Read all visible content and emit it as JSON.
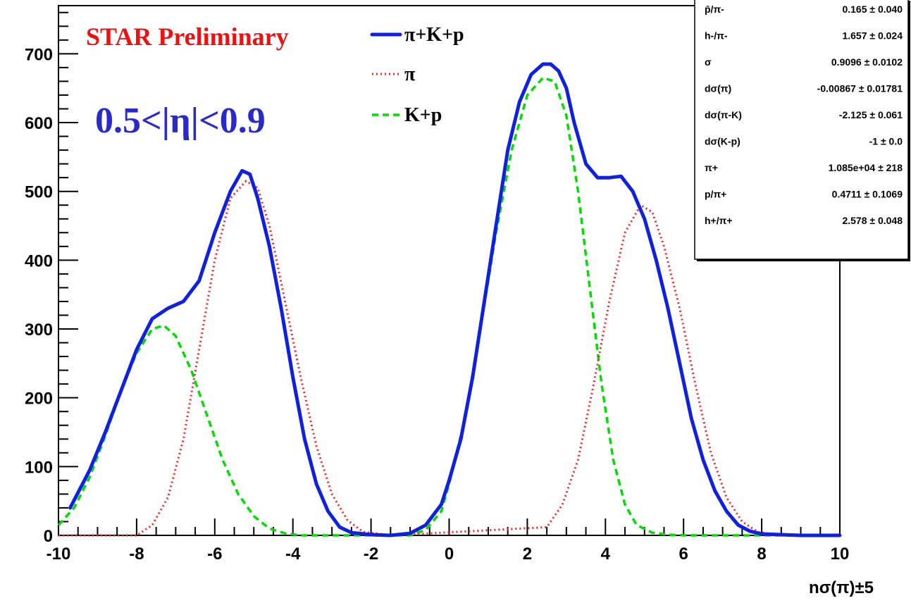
{
  "colors": {
    "total": "#1020e0",
    "pion": "#ff2020",
    "kp": "#00dd00",
    "data": "#000000",
    "annotation_red": "#ee1111",
    "annotation_blue": "#2a2acc"
  },
  "annotations": {
    "preliminary": "STAR Preliminary",
    "eta_range": "0.5<|η|<0.9"
  },
  "stats_box": [
    {
      "key": "p̄/π-",
      "value": "0.165 ± 0.040"
    },
    {
      "key": "h-/π-",
      "value": "1.657 ± 0.024"
    },
    {
      "key": "σ",
      "value": "0.9096 ± 0.0102"
    },
    {
      "key": "dσ(π)",
      "value": "-0.00867 ± 0.01781"
    },
    {
      "key": "dσ(π-K)",
      "value": "-2.125 ± 0.061"
    },
    {
      "key": "dσ(K-p)",
      "value": "-1 ± 0.0"
    },
    {
      "key": "π+",
      "value": "1.085e+04 ± 218"
    },
    {
      "key": "p/π+",
      "value": "0.4711 ± 0.1069"
    },
    {
      "key": "h+/π+",
      "value": "2.578 ± 0.048"
    }
  ],
  "chart_data": {
    "type": "line",
    "xlabel": "nσ(π)±5",
    "ylabel": "",
    "xlim": [
      -10,
      10
    ],
    "ylim": [
      0,
      770
    ],
    "xticks": [
      -10,
      -8,
      -6,
      -4,
      -2,
      0,
      2,
      4,
      6,
      8,
      10
    ],
    "yticks": [
      0,
      100,
      200,
      300,
      400,
      500,
      600,
      700
    ],
    "legend": {
      "position": "top-center",
      "entries": [
        "π+K+p",
        "π",
        "K+p"
      ]
    },
    "series": [
      {
        "name": "π+K+p",
        "style": "solid",
        "x": [
          -9.7,
          -9.2,
          -8.8,
          -8.4,
          -8.0,
          -7.6,
          -7.2,
          -6.8,
          -6.4,
          -6.0,
          -5.6,
          -5.3,
          -5.1,
          -4.9,
          -4.6,
          -4.3,
          -4.0,
          -3.7,
          -3.4,
          -3.1,
          -2.8,
          -2.5,
          -2.0,
          -1.5,
          -1.0,
          -0.6,
          -0.2,
          0.0,
          0.3,
          0.6,
          0.9,
          1.2,
          1.5,
          1.8,
          2.1,
          2.4,
          2.6,
          2.8,
          3.0,
          3.2,
          3.5,
          3.8,
          4.1,
          4.4,
          4.7,
          5.0,
          5.3,
          5.6,
          5.9,
          6.2,
          6.5,
          6.8,
          7.1,
          7.4,
          7.7,
          8.0,
          8.5,
          9.0,
          10.0
        ],
        "values": [
          40,
          95,
          150,
          210,
          270,
          315,
          330,
          340,
          370,
          440,
          500,
          530,
          525,
          490,
          420,
          330,
          230,
          140,
          75,
          35,
          12,
          4,
          1,
          0,
          3,
          15,
          45,
          80,
          140,
          230,
          340,
          450,
          560,
          630,
          670,
          685,
          685,
          675,
          650,
          600,
          540,
          520,
          520,
          522,
          500,
          460,
          400,
          330,
          250,
          170,
          110,
          65,
          35,
          15,
          6,
          2,
          1,
          0,
          0
        ]
      },
      {
        "name": "π",
        "style": "dotted",
        "x": [
          -10.0,
          -8.0,
          -7.6,
          -7.2,
          -6.8,
          -6.4,
          -6.0,
          -5.6,
          -5.2,
          -4.9,
          -4.6,
          -4.2,
          -3.8,
          -3.4,
          -3.0,
          -2.6,
          -2.2,
          -1.5,
          2.5,
          2.9,
          3.3,
          3.7,
          4.1,
          4.5,
          4.9,
          5.2,
          5.5,
          5.9,
          6.3,
          6.7,
          7.1,
          7.5,
          7.9,
          8.5,
          10.0
        ],
        "values": [
          0,
          0,
          15,
          55,
          140,
          270,
          400,
          490,
          515,
          505,
          450,
          340,
          230,
          130,
          60,
          22,
          5,
          0,
          12,
          45,
          110,
          220,
          340,
          440,
          480,
          470,
          420,
          330,
          220,
          120,
          55,
          20,
          5,
          0,
          0
        ]
      },
      {
        "name": "K+p",
        "style": "dashed",
        "x": [
          -10.0,
          -9.6,
          -9.2,
          -8.8,
          -8.4,
          -8.0,
          -7.6,
          -7.3,
          -7.0,
          -6.6,
          -6.2,
          -5.8,
          -5.4,
          -5.0,
          -4.6,
          -4.2,
          -3.8,
          -2.0,
          -1.0,
          -0.6,
          -0.2,
          0.0,
          0.4,
          0.8,
          1.2,
          1.6,
          2.0,
          2.4,
          2.7,
          3.0,
          3.3,
          3.6,
          3.9,
          4.2,
          4.5,
          4.8,
          5.2,
          5.6,
          6.0,
          10.0
        ],
        "values": [
          15,
          40,
          85,
          145,
          210,
          265,
          300,
          305,
          290,
          240,
          175,
          110,
          60,
          28,
          10,
          3,
          0,
          0,
          0,
          8,
          35,
          75,
          170,
          300,
          440,
          560,
          640,
          665,
          660,
          610,
          500,
          360,
          220,
          110,
          45,
          15,
          4,
          1,
          0,
          0
        ]
      }
    ]
  }
}
